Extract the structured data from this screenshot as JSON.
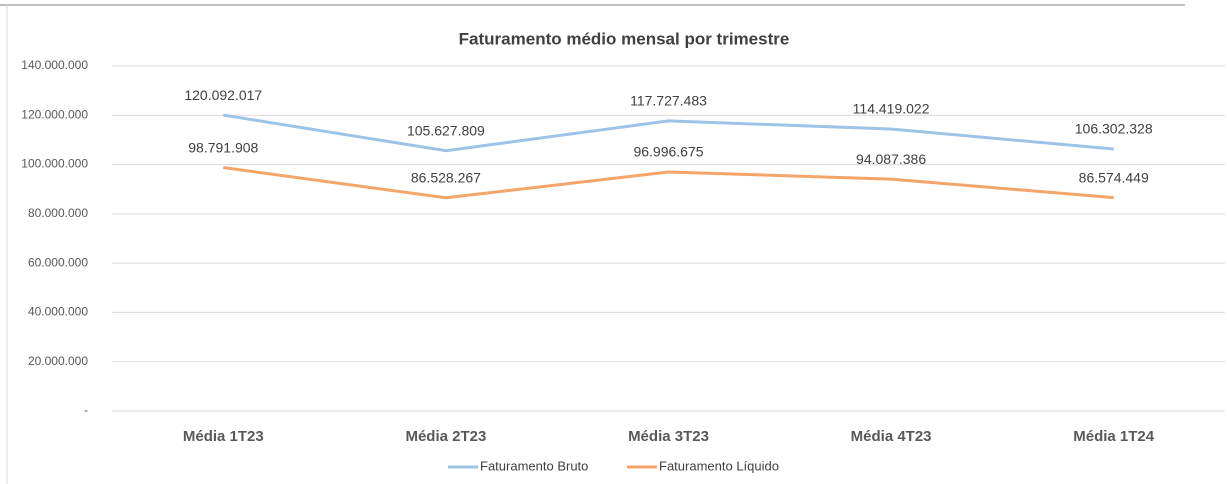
{
  "chart_data": {
    "type": "line",
    "title": "Faturamento médio mensal por trimestre",
    "categories": [
      "Média 1T23",
      "Média 2T23",
      "Média 3T23",
      "Média 4T23",
      "Média 1T24"
    ],
    "series": [
      {
        "name": "Faturamento Bruto",
        "color": "#9dc3e6",
        "values": [
          120092017,
          105627809,
          117727483,
          114419022,
          106302328
        ],
        "value_labels": [
          "120.092.017",
          "105.627.809",
          "117.727.483",
          "114.419.022",
          "106.302.328"
        ]
      },
      {
        "name": "Faturamento Líquido",
        "color": "#f4a56a",
        "values": [
          98791908,
          86528267,
          96996675,
          94087386,
          86574449
        ],
        "value_labels": [
          "98.791.908",
          "86.528.267",
          "96.996.675",
          "94.087.386",
          "86.574.449"
        ]
      }
    ],
    "ylim": [
      0,
      140000000
    ],
    "yticks": [
      {
        "value": 0,
        "label": "-"
      },
      {
        "value": 20000000,
        "label": "20.000.000"
      },
      {
        "value": 40000000,
        "label": "40.000.000"
      },
      {
        "value": 60000000,
        "label": "60.000.000"
      },
      {
        "value": 80000000,
        "label": "80.000.000"
      },
      {
        "value": 100000000,
        "label": "100.000.000"
      },
      {
        "value": 120000000,
        "label": "120.000.000"
      },
      {
        "value": 140000000,
        "label": "140.000.000"
      }
    ],
    "grid": true,
    "legend": "bottom"
  }
}
